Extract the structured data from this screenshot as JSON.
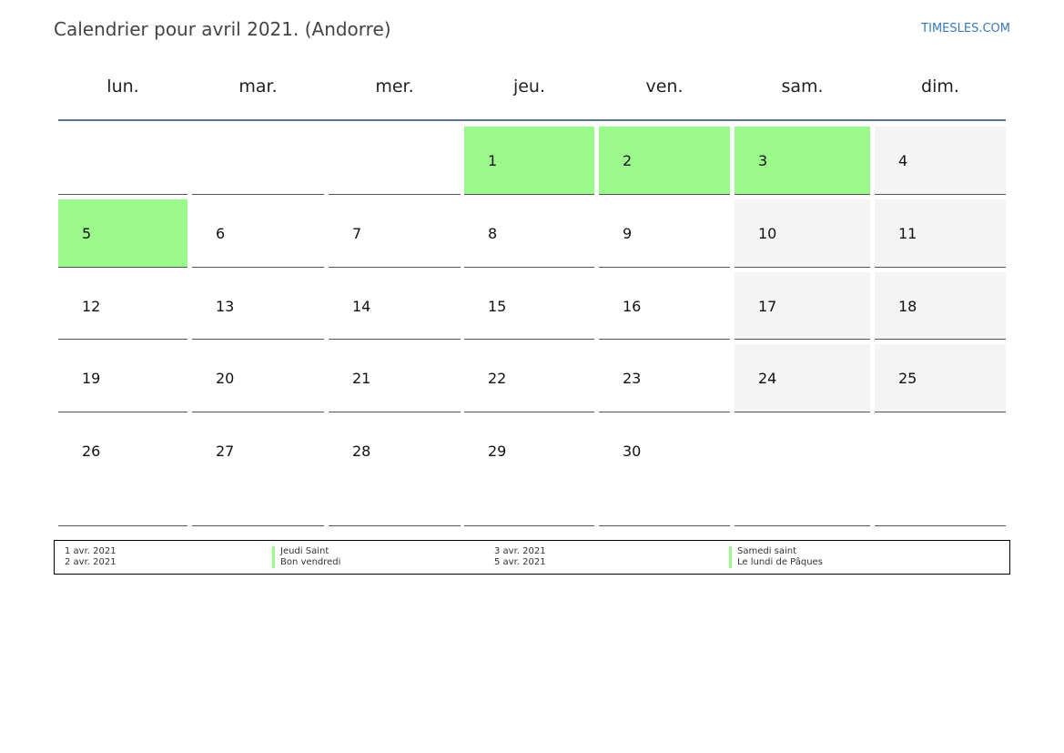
{
  "title": "Calendrier pour avril 2021. (Andorre)",
  "site": "TIMESLES.COM",
  "colors": {
    "holiday": "#9af98a",
    "weekend": "#f4f4f4",
    "header_rule": "#5a7391",
    "site_link": "#3a7ab8"
  },
  "weekdays": [
    "lun.",
    "mar.",
    "mer.",
    "jeu.",
    "ven.",
    "sam.",
    "dim."
  ],
  "weeks": [
    [
      {
        "day": "",
        "type": "empty"
      },
      {
        "day": "",
        "type": "empty"
      },
      {
        "day": "",
        "type": "empty"
      },
      {
        "day": "1",
        "type": "holiday"
      },
      {
        "day": "2",
        "type": "holiday"
      },
      {
        "day": "3",
        "type": "holiday"
      },
      {
        "day": "4",
        "type": "weekend"
      }
    ],
    [
      {
        "day": "5",
        "type": "holiday"
      },
      {
        "day": "6",
        "type": "normal"
      },
      {
        "day": "7",
        "type": "normal"
      },
      {
        "day": "8",
        "type": "normal"
      },
      {
        "day": "9",
        "type": "normal"
      },
      {
        "day": "10",
        "type": "weekend"
      },
      {
        "day": "11",
        "type": "weekend"
      }
    ],
    [
      {
        "day": "12",
        "type": "normal"
      },
      {
        "day": "13",
        "type": "normal"
      },
      {
        "day": "14",
        "type": "normal"
      },
      {
        "day": "15",
        "type": "normal"
      },
      {
        "day": "16",
        "type": "normal"
      },
      {
        "day": "17",
        "type": "weekend"
      },
      {
        "day": "18",
        "type": "weekend"
      }
    ],
    [
      {
        "day": "19",
        "type": "normal"
      },
      {
        "day": "20",
        "type": "normal"
      },
      {
        "day": "21",
        "type": "normal"
      },
      {
        "day": "22",
        "type": "normal"
      },
      {
        "day": "23",
        "type": "normal"
      },
      {
        "day": "24",
        "type": "weekend"
      },
      {
        "day": "25",
        "type": "weekend"
      }
    ],
    [
      {
        "day": "26",
        "type": "normal"
      },
      {
        "day": "27",
        "type": "normal"
      },
      {
        "day": "28",
        "type": "normal"
      },
      {
        "day": "29",
        "type": "normal"
      },
      {
        "day": "30",
        "type": "normal"
      },
      {
        "day": "",
        "type": "blank"
      },
      {
        "day": "",
        "type": "blank"
      }
    ]
  ],
  "legend": [
    {
      "date": "1 avr. 2021",
      "name": "Jeudi Saint"
    },
    {
      "date": "2 avr. 2021",
      "name": "Bon vendredi"
    },
    {
      "date": "3 avr. 2021",
      "name": "Samedi saint"
    },
    {
      "date": "5 avr. 2021",
      "name": "Le lundi de Pâques"
    }
  ]
}
